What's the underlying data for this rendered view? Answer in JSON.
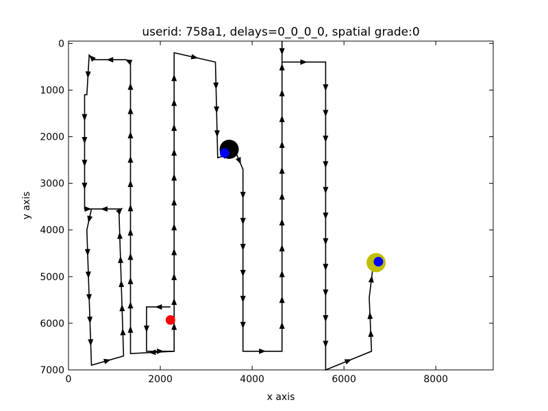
{
  "chart_data": {
    "type": "scatter",
    "title": "userid: 758a1, delays=0_0_0_0, spatial grade:0",
    "xlabel": "x axis",
    "ylabel": "y axis",
    "xlim": [
      0,
      9250
    ],
    "ylim": [
      7000,
      -50
    ],
    "y_inverted": true,
    "grid": false,
    "xticks": [
      0,
      2000,
      4000,
      6000,
      8000
    ],
    "yticks": [
      0,
      1000,
      2000,
      3000,
      4000,
      5000,
      6000,
      7000
    ],
    "path_color": "#000000",
    "path": [
      [
        2220,
        5650
      ],
      [
        1700,
        5650
      ],
      [
        1700,
        6600
      ],
      [
        2300,
        6600
      ],
      [
        2300,
        200
      ],
      [
        3200,
        400
      ],
      [
        3250,
        2450
      ],
      [
        3650,
        2350
      ],
      [
        3800,
        2700
      ],
      [
        3800,
        6600
      ],
      [
        4650,
        6600
      ],
      [
        4650,
        -50
      ],
      [
        4650,
        400
      ],
      [
        5600,
        400
      ],
      [
        5600,
        7000
      ],
      [
        6600,
        6600
      ],
      [
        6550,
        5450
      ],
      [
        6650,
        4650
      ]
    ],
    "path_left": [
      [
        2300,
        6600
      ],
      [
        1350,
        6650
      ],
      [
        1350,
        400
      ],
      [
        1250,
        350
      ],
      [
        550,
        350
      ],
      [
        450,
        250
      ],
      [
        400,
        1100
      ],
      [
        350,
        1100
      ],
      [
        350,
        3550
      ],
      [
        500,
        3550
      ],
      [
        400,
        4000
      ],
      [
        500,
        6900
      ],
      [
        1200,
        6700
      ],
      [
        1100,
        3600
      ],
      [
        1150,
        3550
      ],
      [
        400,
        3550
      ]
    ],
    "markers": [
      {
        "label": "start",
        "x": 2220,
        "y": 5930,
        "color": "#ff0000",
        "size": "small"
      },
      {
        "label": "black-circle",
        "x": 3500,
        "y": 2270,
        "color": "#000000",
        "size": "large"
      },
      {
        "label": "blue-upper",
        "x": 3400,
        "y": 2350,
        "color": "#0000ff",
        "size": "small"
      },
      {
        "label": "yellow-circle",
        "x": 6700,
        "y": 4700,
        "color": "#bfbf00",
        "size": "large"
      },
      {
        "label": "blue-lower",
        "x": 6750,
        "y": 4680,
        "color": "#0000ff",
        "size": "small"
      }
    ]
  }
}
